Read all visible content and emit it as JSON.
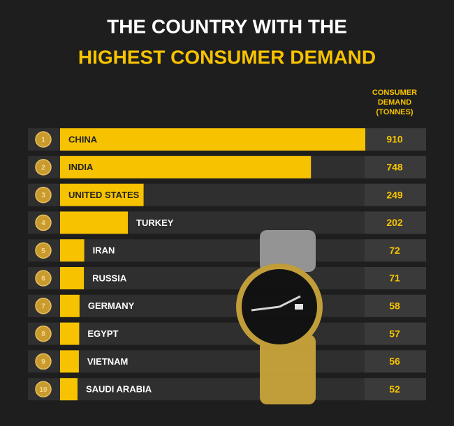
{
  "chart_data": {
    "type": "bar",
    "orientation": "horizontal",
    "title": "THE COUNTRY WITH THE",
    "subtitle": "HIGHEST CONSUMER DEMAND",
    "value_header": "CONSUMER DEMAND (TONNES)",
    "ranks": [
      1,
      2,
      3,
      4,
      5,
      6,
      7,
      8,
      9,
      10
    ],
    "categories": [
      "CHINA",
      "INDIA",
      "UNITED STATES",
      "TURKEY",
      "IRAN",
      "RUSSIA",
      "GERMANY",
      "EGYPT",
      "VIETNAM",
      "SAUDI ARABIA"
    ],
    "values": [
      910,
      748,
      249,
      202,
      72,
      71,
      58,
      57,
      56,
      52
    ],
    "color": "#f7c300"
  }
}
